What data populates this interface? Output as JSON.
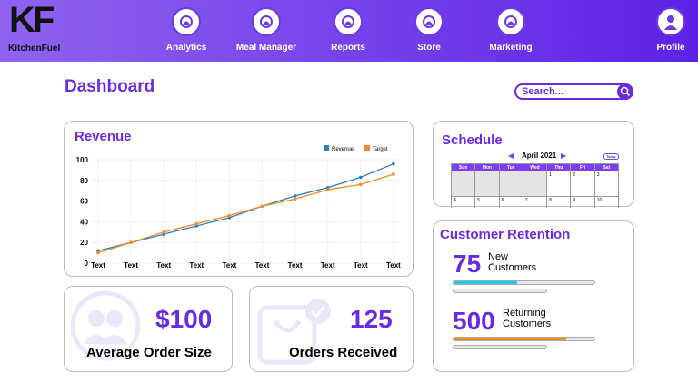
{
  "nav": {
    "logo_mark": "KF",
    "logo": "KitchenFuel",
    "items": [
      "Analytics",
      "Meal Manager",
      "Reports",
      "Store",
      "Marketing"
    ],
    "profile": "Profile"
  },
  "header": {
    "title": "Dashboard",
    "search_placeholder": "Search..."
  },
  "chart_data": {
    "type": "line",
    "title": "Revenue",
    "categories": [
      "Text",
      "Text",
      "Text",
      "Text",
      "Text",
      "Text",
      "Text",
      "Text",
      "Text",
      "Text"
    ],
    "series": [
      {
        "name": "Revenue",
        "color": "#2d7fc1",
        "values": [
          12,
          20,
          28,
          36,
          44,
          55,
          65,
          73,
          83,
          96
        ]
      },
      {
        "name": "Target",
        "color": "#f28c28",
        "values": [
          10,
          20,
          30,
          38,
          46,
          55,
          62,
          71,
          76,
          86
        ]
      }
    ],
    "ylim": [
      0,
      100
    ],
    "yticks": [
      0,
      20,
      40,
      60,
      80,
      100
    ],
    "grid": true,
    "legend": "top-right"
  },
  "schedule": {
    "title": "Schedule",
    "month": "April 2021",
    "today": "Today",
    "weekdays": [
      "Sun",
      "Mon",
      "Tue",
      "Wed",
      "Thu",
      "Fri",
      "Sat"
    ],
    "days": [
      null,
      null,
      null,
      null,
      1,
      2,
      3,
      4,
      5,
      6,
      7,
      8,
      9,
      10
    ]
  },
  "retention": {
    "title": "Customer Retention",
    "items": [
      {
        "value": 75,
        "label": "New Customers"
      },
      {
        "value": 500,
        "label": "Returning Customers"
      }
    ]
  },
  "stats": [
    {
      "value": "$100",
      "label": "Average Order Size"
    },
    {
      "value": "125",
      "label": "Orders Received"
    }
  ]
}
